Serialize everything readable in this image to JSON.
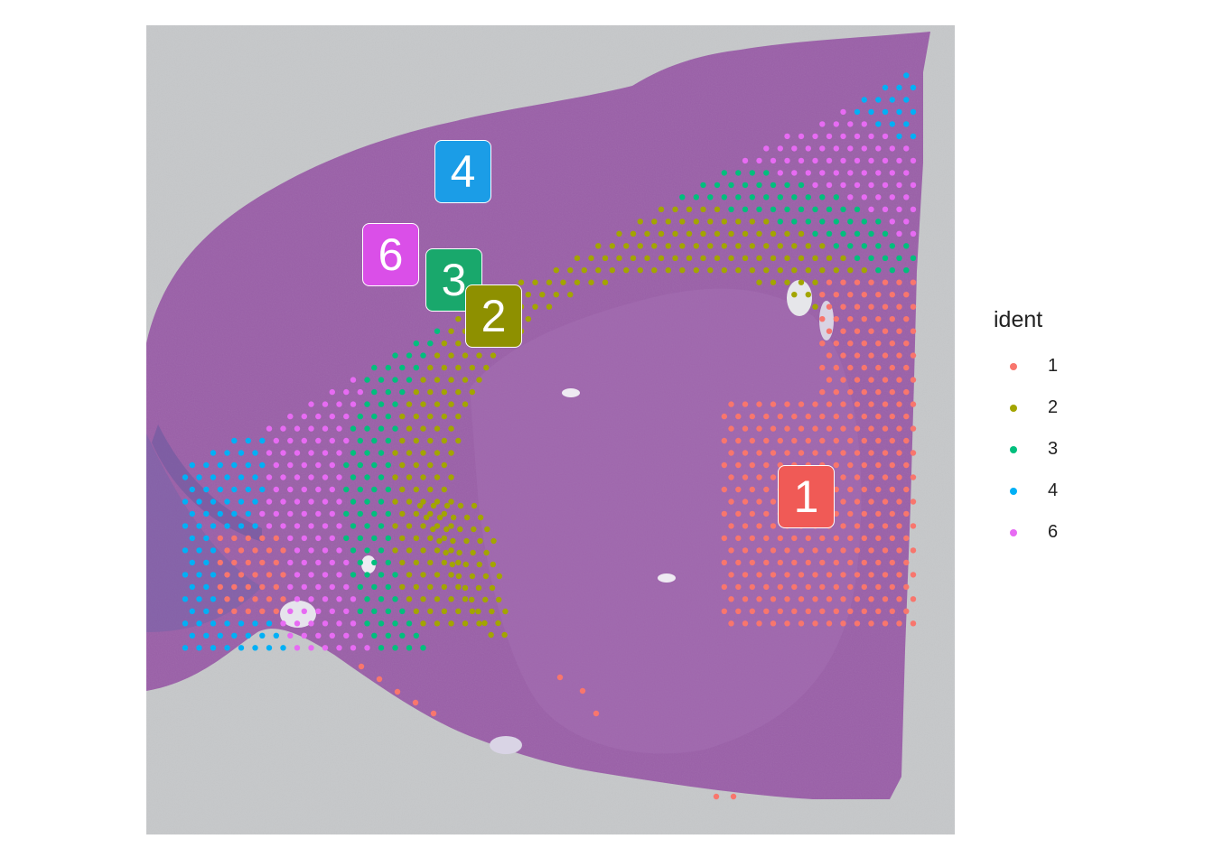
{
  "figure": {
    "legend_title": "ident",
    "clusters": [
      {
        "id": "1",
        "color": "#F8766D"
      },
      {
        "id": "2",
        "color": "#A3A500"
      },
      {
        "id": "3",
        "color": "#00BF7D"
      },
      {
        "id": "4",
        "color": "#00B0F6"
      },
      {
        "id": "6",
        "color": "#E76BF3"
      }
    ],
    "labels": [
      {
        "text": "4",
        "color": "#1B9DE7"
      },
      {
        "text": "6",
        "color": "#DA4FE8"
      },
      {
        "text": "3",
        "color": "#19A86C"
      },
      {
        "text": "2",
        "color": "#8E9000"
      },
      {
        "text": "1",
        "color": "#F05A56"
      }
    ],
    "background": "H&E-stained tissue section (purple) on grey slide"
  }
}
